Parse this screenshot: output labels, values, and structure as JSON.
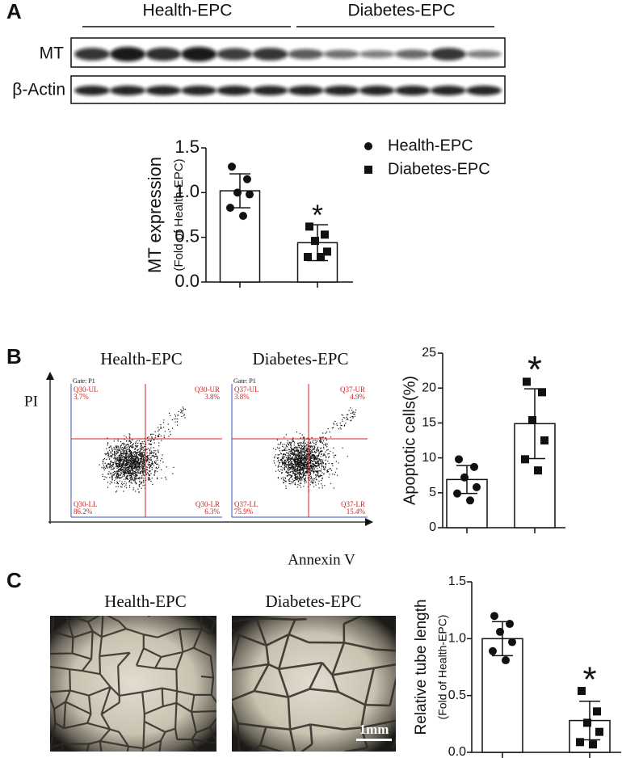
{
  "figure": {
    "panel_a": {
      "label": "A",
      "groups": [
        "Health-EPC",
        "Diabetes-EPC"
      ],
      "rows": [
        "MT",
        "β-Actin"
      ]
    },
    "panel_b": {
      "label": "B",
      "y_label": "PI",
      "x_label": "Annexin V",
      "plots": [
        {
          "title": "Health-EPC",
          "gate": "Gate: P1",
          "quadrants": [
            "Q30-UL",
            "Q30-UR",
            "Q30-LL",
            "Q30-LR"
          ],
          "percents": [
            "3.7%",
            "3.8%",
            "86.2%",
            "6.3%"
          ]
        },
        {
          "title": "Diabetes-EPC",
          "gate": "Gate: P1",
          "quadrants": [
            "Q37-UL",
            "Q37-UR",
            "Q37-LL",
            "Q37-LR"
          ],
          "percents": [
            "3.8%",
            "4.9%",
            "75.9%",
            "15.4%"
          ]
        }
      ]
    },
    "panel_c": {
      "label": "C",
      "images": [
        "Health-EPC",
        "Diabetes-EPC"
      ],
      "scale_bar": "1mm"
    }
  },
  "chart_data": [
    {
      "type": "bar",
      "ylabel": "MT expression",
      "ylabel_note": "(Fold of Health-EPC)",
      "categories": [
        null,
        null
      ],
      "values": [
        1.02,
        0.44
      ],
      "errors": [
        0.19,
        0.2
      ],
      "points": [
        [
          1.29,
          1.15,
          1.0,
          0.98,
          0.83,
          0.74
        ],
        [
          0.62,
          0.53,
          0.46,
          0.34,
          0.28,
          0.28
        ]
      ],
      "markers": [
        "circle",
        "square"
      ],
      "legend": [
        "Health-EPC",
        "Diabetes-EPC"
      ],
      "annotation": {
        "text": "*",
        "category": 1
      },
      "ylim": [
        0,
        1.5
      ],
      "yticks": [
        {
          "value": 0,
          "label": "0.0"
        },
        0.5,
        {
          "value": 1,
          "label": "1.0"
        },
        1.5
      ]
    },
    {
      "type": "bar",
      "ylabel": "Apoptotic cells(%)",
      "categories": [
        null,
        null
      ],
      "values": [
        6.9,
        14.9
      ],
      "errors": [
        2.0,
        5.0
      ],
      "points": [
        [
          9.8,
          8.7,
          7.2,
          5.8,
          4.9,
          3.9
        ],
        [
          20.9,
          19.4,
          15.4,
          12.5,
          9.8,
          8.2
        ]
      ],
      "markers": [
        "circle",
        "square"
      ],
      "annotation": {
        "text": "*",
        "category": 1
      },
      "ylim": [
        0,
        25
      ],
      "yticks": [
        0,
        5,
        10,
        15,
        20,
        25
      ]
    },
    {
      "type": "bar",
      "ylabel": "Relative tube length",
      "ylabel_note": "(Fold of Health-EPC)",
      "categories": [
        null,
        null
      ],
      "values": [
        1.0,
        0.28
      ],
      "errors": [
        0.15,
        0.17
      ],
      "points": [
        [
          1.2,
          1.13,
          1.06,
          0.97,
          0.89,
          0.81
        ],
        [
          0.54,
          0.36,
          0.26,
          0.18,
          0.09,
          0.07
        ]
      ],
      "markers": [
        "circle",
        "square"
      ],
      "annotation": {
        "text": "*",
        "category": 1
      },
      "ylim": [
        0,
        1.5
      ],
      "yticks": [
        {
          "value": 0,
          "label": "0.0"
        },
        0.5,
        {
          "value": 1,
          "label": "1.0"
        },
        1.5
      ]
    }
  ]
}
